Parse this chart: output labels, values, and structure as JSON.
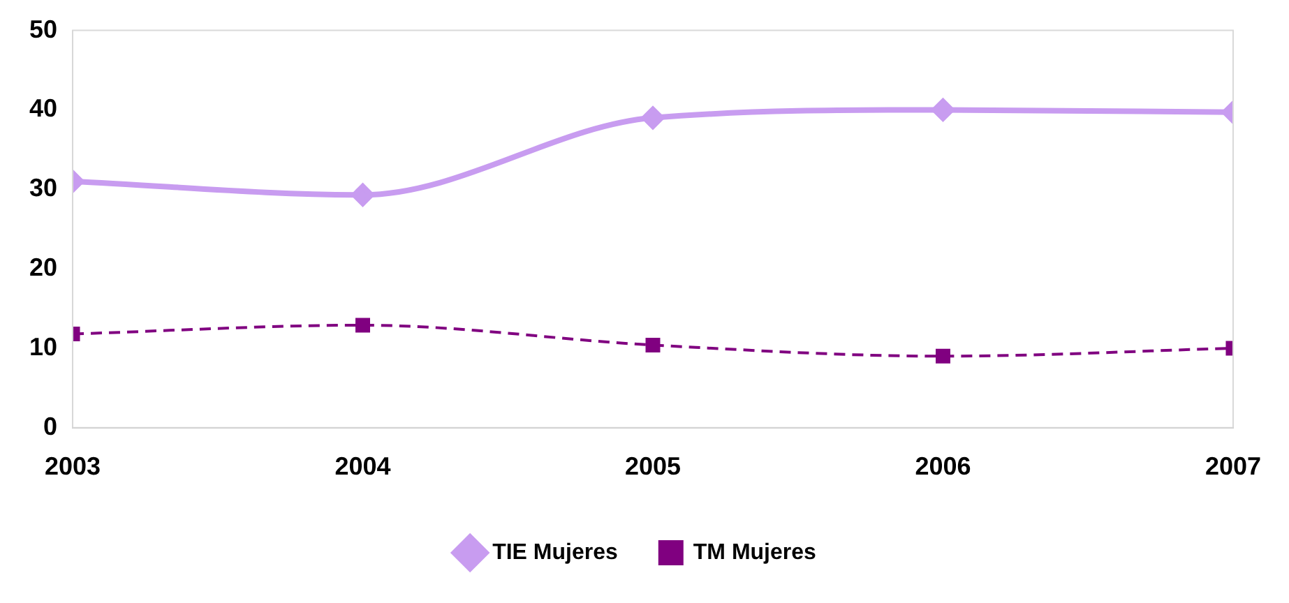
{
  "chart_data": {
    "type": "line",
    "x": [
      2003,
      2004,
      2005,
      2006,
      2007
    ],
    "series": [
      {
        "name": "TIE Mujeres",
        "color": "#c89cf0",
        "values": [
          31,
          29.3,
          39,
          40,
          39.7
        ],
        "marker": "diamond",
        "line_style": "solid"
      },
      {
        "name": "TM Mujeres",
        "color": "#800080",
        "values": [
          11.8,
          12.9,
          10.4,
          9,
          10
        ],
        "marker": "square",
        "line_style": "dashed"
      }
    ],
    "xlim": [
      2003,
      2007
    ],
    "xticks": [
      2003,
      2004,
      2005,
      2006,
      2007
    ],
    "ylim": [
      0,
      50
    ],
    "yticks": [
      0,
      10,
      20,
      30,
      40,
      50
    ],
    "grid": false,
    "legend": "bottom"
  }
}
